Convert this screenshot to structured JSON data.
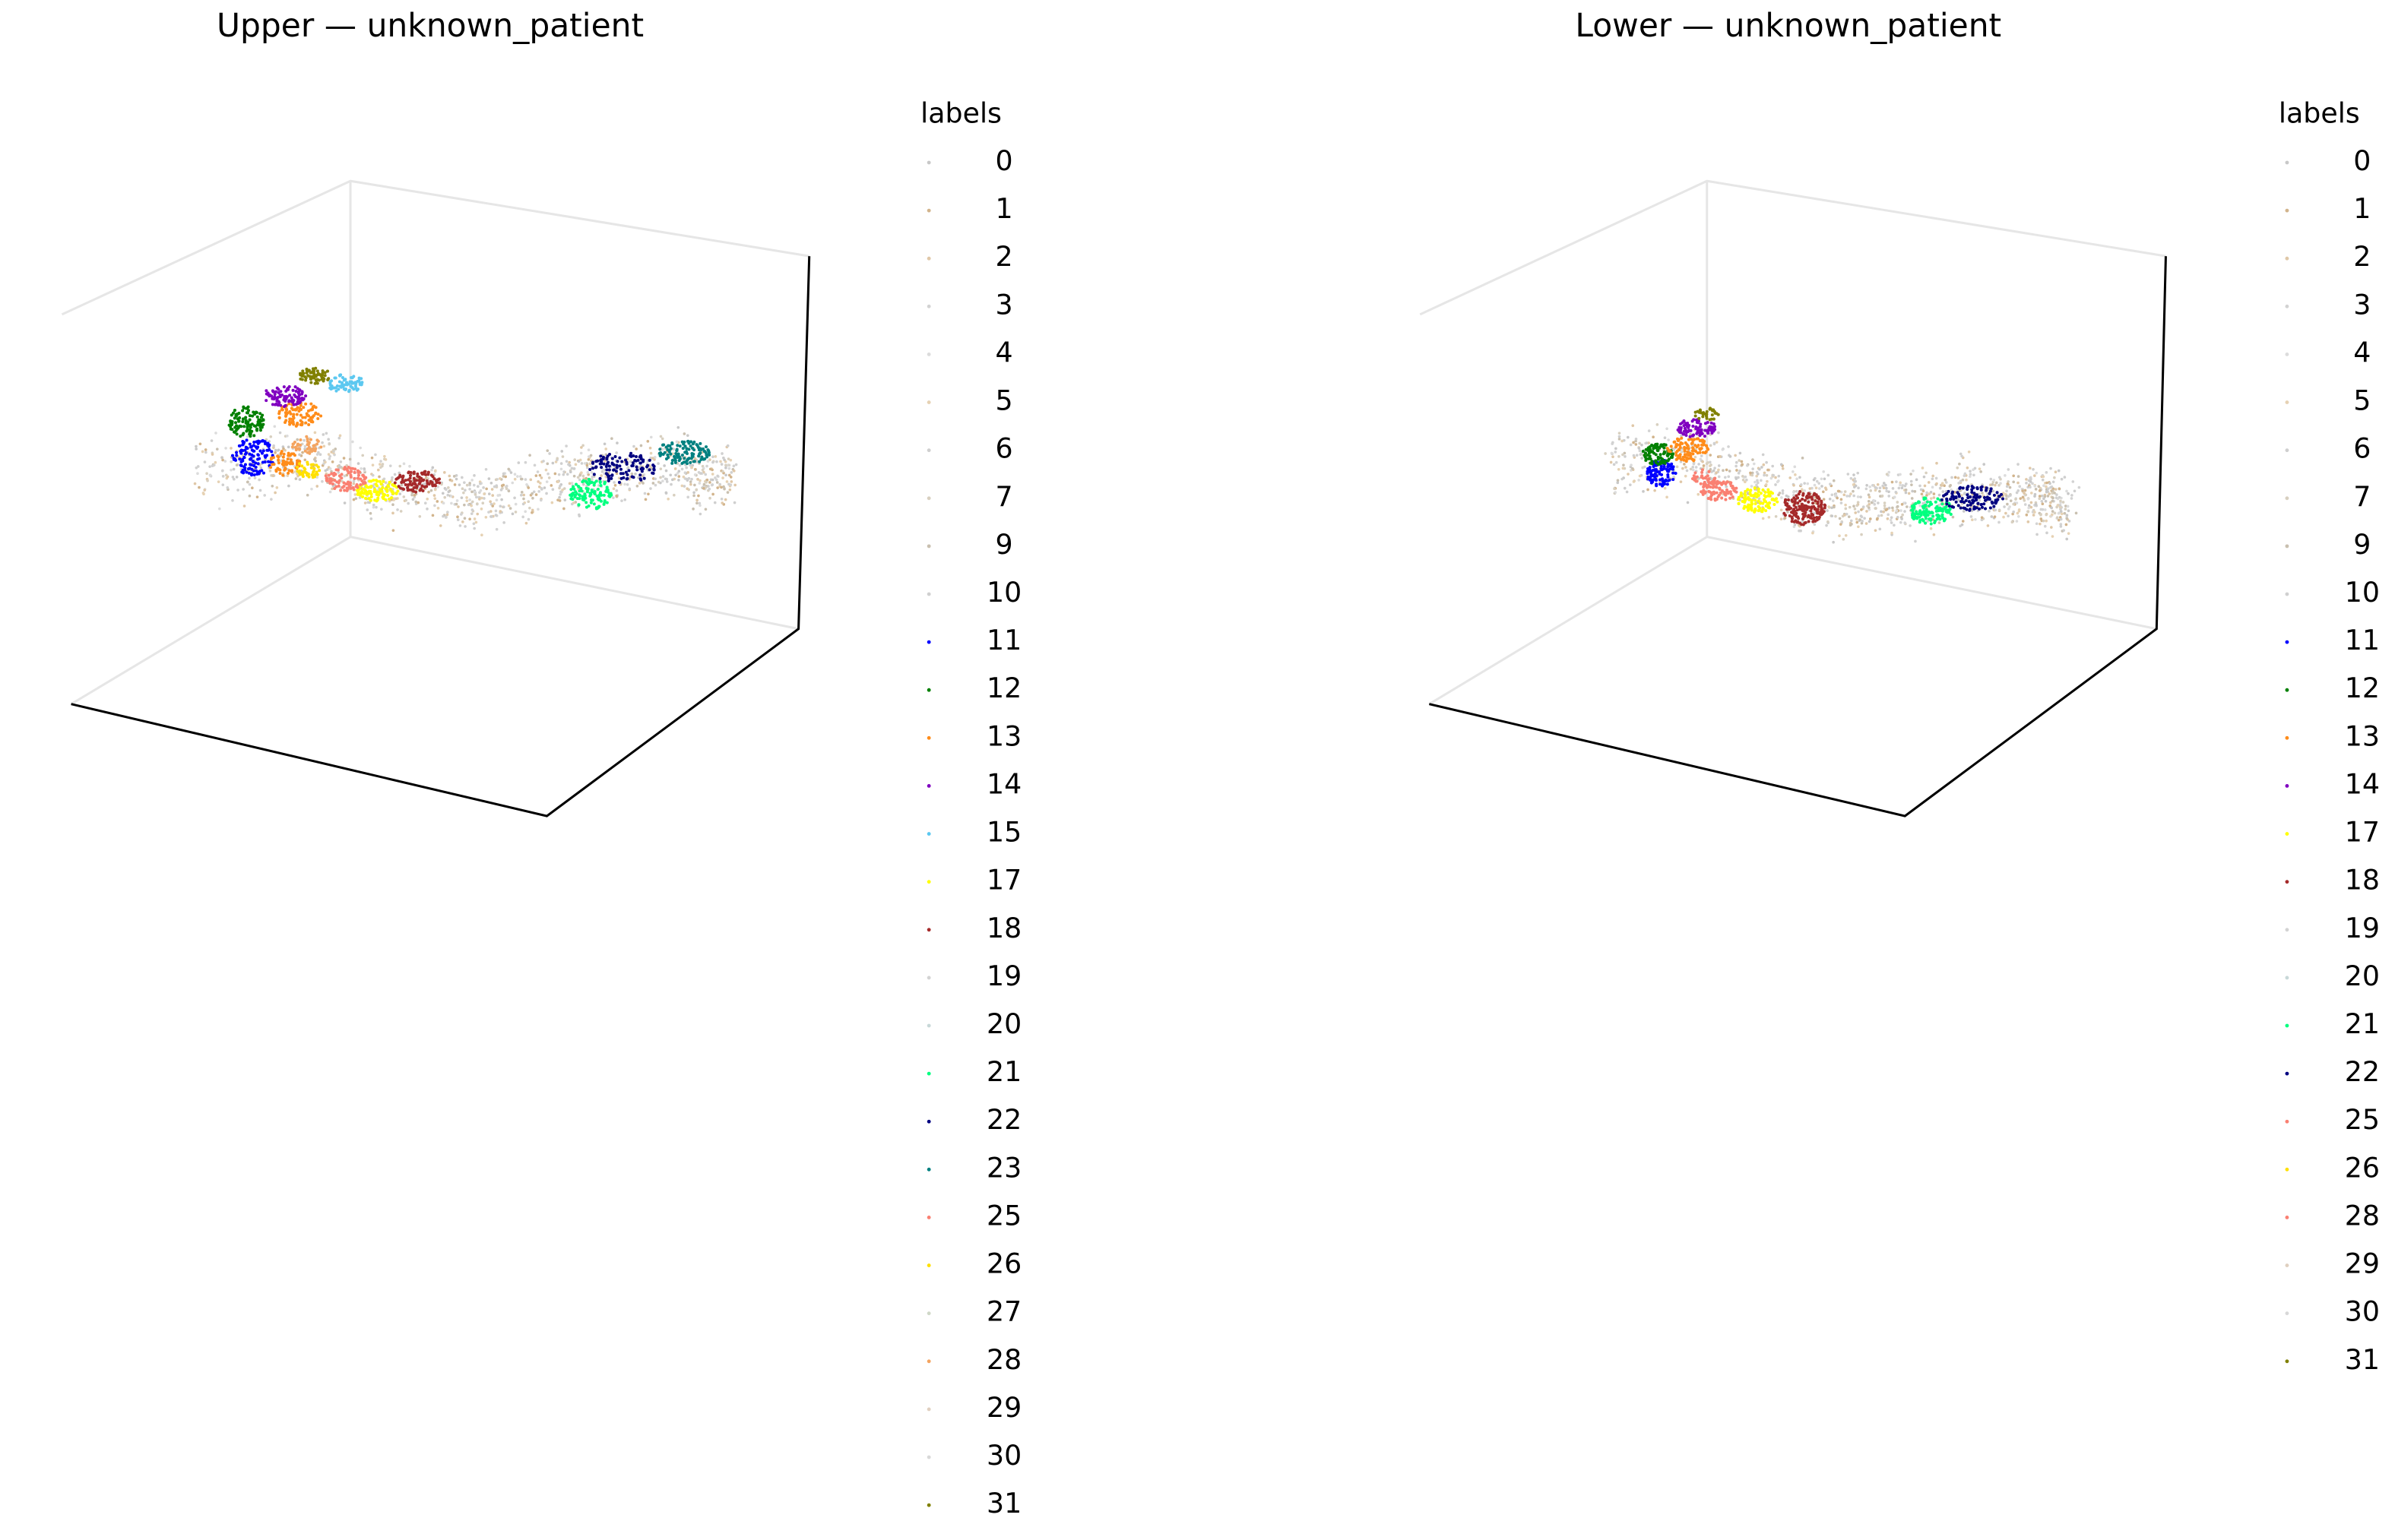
{
  "chart_data": [
    {
      "type": "scatter3d",
      "title": "Upper — unknown_patient",
      "legend_title": "labels",
      "series": [
        {
          "name": "0",
          "color": "#c8c8c8"
        },
        {
          "name": "1",
          "color": "#d2b48c"
        },
        {
          "name": "2",
          "color": "#e0c8a8"
        },
        {
          "name": "3",
          "color": "#d3d3d3"
        },
        {
          "name": "4",
          "color": "#dcdcdc"
        },
        {
          "name": "5",
          "color": "#e6d2b4"
        },
        {
          "name": "6",
          "color": "#cfcfcf"
        },
        {
          "name": "7",
          "color": "#d8d0c0"
        },
        {
          "name": "9",
          "color": "#c9c0b0"
        },
        {
          "name": "10",
          "color": "#d0d0d0"
        },
        {
          "name": "11",
          "color": "#0000ff"
        },
        {
          "name": "12",
          "color": "#008000"
        },
        {
          "name": "13",
          "color": "#ff8c1a"
        },
        {
          "name": "14",
          "color": "#8000c0"
        },
        {
          "name": "15",
          "color": "#5cc8f0"
        },
        {
          "name": "17",
          "color": "#ffff00"
        },
        {
          "name": "18",
          "color": "#a52a2a"
        },
        {
          "name": "19",
          "color": "#d3d3d3"
        },
        {
          "name": "20",
          "color": "#c8d8d8"
        },
        {
          "name": "21",
          "color": "#00ff7f"
        },
        {
          "name": "22",
          "color": "#000080"
        },
        {
          "name": "23",
          "color": "#008080"
        },
        {
          "name": "25",
          "color": "#fa8072"
        },
        {
          "name": "26",
          "color": "#ffe000"
        },
        {
          "name": "27",
          "color": "#d0d8c8"
        },
        {
          "name": "28",
          "color": "#f4a460"
        },
        {
          "name": "29",
          "color": "#e0d0c0"
        },
        {
          "name": "30",
          "color": "#d8d8d8"
        },
        {
          "name": "31",
          "color": "#808000"
        }
      ]
    },
    {
      "type": "scatter3d",
      "title": "Lower — unknown_patient",
      "legend_title": "labels",
      "series": [
        {
          "name": "0",
          "color": "#c8c8c8"
        },
        {
          "name": "1",
          "color": "#d2b48c"
        },
        {
          "name": "2",
          "color": "#e0c8a8"
        },
        {
          "name": "3",
          "color": "#d3d3d3"
        },
        {
          "name": "4",
          "color": "#dcdcdc"
        },
        {
          "name": "5",
          "color": "#e6d2b4"
        },
        {
          "name": "6",
          "color": "#cfcfcf"
        },
        {
          "name": "7",
          "color": "#d8d0c0"
        },
        {
          "name": "9",
          "color": "#c9c0b0"
        },
        {
          "name": "10",
          "color": "#d0d0d0"
        },
        {
          "name": "11",
          "color": "#0000ff"
        },
        {
          "name": "12",
          "color": "#008000"
        },
        {
          "name": "13",
          "color": "#ff8c1a"
        },
        {
          "name": "14",
          "color": "#8000c0"
        },
        {
          "name": "17",
          "color": "#ffff00"
        },
        {
          "name": "18",
          "color": "#a52a2a"
        },
        {
          "name": "19",
          "color": "#d3d3d3"
        },
        {
          "name": "20",
          "color": "#c8d8d8"
        },
        {
          "name": "21",
          "color": "#00ff7f"
        },
        {
          "name": "22",
          "color": "#000080"
        },
        {
          "name": "25",
          "color": "#fa8072"
        },
        {
          "name": "26",
          "color": "#ffe000"
        },
        {
          "name": "28",
          "color": "#fa8072"
        },
        {
          "name": "29",
          "color": "#e0d0c0"
        },
        {
          "name": "30",
          "color": "#d8d8d8"
        },
        {
          "name": "31",
          "color": "#808000"
        }
      ]
    }
  ]
}
